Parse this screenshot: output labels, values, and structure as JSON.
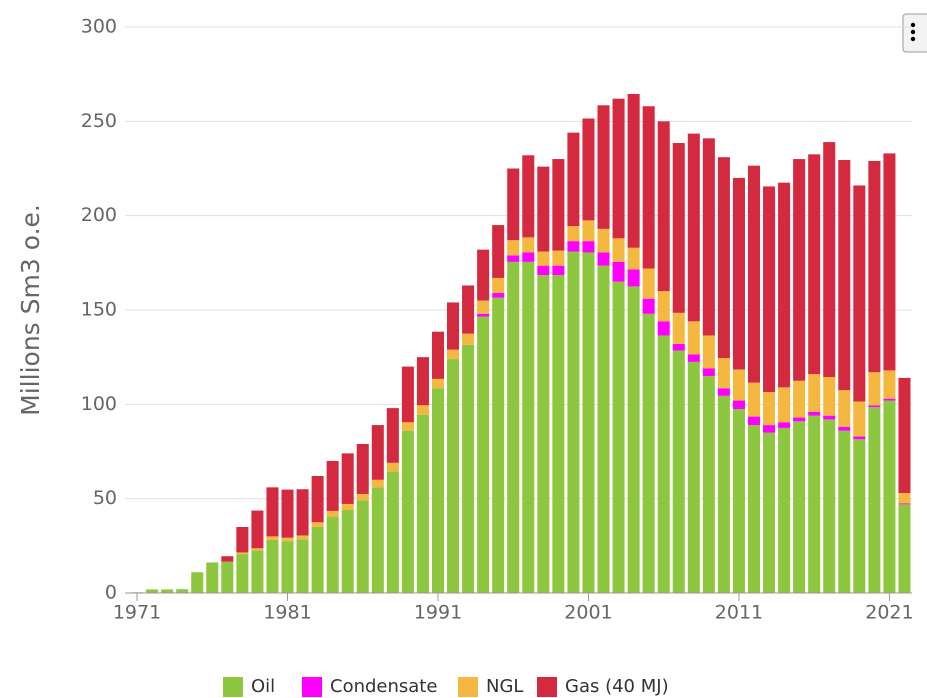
{
  "chart_data": {
    "type": "stacked_bar",
    "y_label": "Millions Sm3 o.e.",
    "x": [
      1971,
      1972,
      1973,
      1974,
      1975,
      1976,
      1977,
      1978,
      1979,
      1980,
      1981,
      1982,
      1983,
      1984,
      1985,
      1986,
      1987,
      1988,
      1989,
      1990,
      1991,
      1992,
      1993,
      1994,
      1995,
      1996,
      1997,
      1998,
      1999,
      2000,
      2001,
      2002,
      2003,
      2004,
      2005,
      2006,
      2007,
      2008,
      2009,
      2010,
      2011,
      2012,
      2013,
      2014,
      2015,
      2016,
      2017,
      2018,
      2019,
      2020,
      2021,
      2022
    ],
    "series": [
      {
        "name": "Oil",
        "color": "#8dc63f",
        "values": [
          0.4,
          1.9,
          1.9,
          2.0,
          11.0,
          16.2,
          16.6,
          20.6,
          22.5,
          28.2,
          27.5,
          28.5,
          35.0,
          40.5,
          44.0,
          49.0,
          56.0,
          64.5,
          86.0,
          94.5,
          108.5,
          124,
          131.5,
          146.5,
          156.5,
          175.5,
          175.5,
          168.5,
          168.5,
          181,
          180.5,
          173.5,
          165,
          162.5,
          148,
          136.5,
          128.5,
          122.5,
          115,
          104.5,
          97.5,
          89,
          85,
          87.5,
          91,
          94,
          92,
          86,
          81.5,
          98.5,
          102,
          47
        ]
      },
      {
        "name": "Condensate",
        "color": "#ff00ff",
        "values": [
          0,
          0,
          0,
          0,
          0,
          0,
          0,
          0,
          0,
          0,
          0,
          0,
          0,
          0,
          0,
          0,
          0,
          0,
          0,
          0,
          0,
          0,
          0,
          1.5,
          2.5,
          3.5,
          5,
          5,
          5,
          5.5,
          6,
          7,
          10.5,
          9,
          8,
          7.5,
          3.5,
          4,
          4,
          4,
          4.5,
          4.5,
          4,
          3,
          2,
          2,
          2,
          2,
          1.5,
          1,
          1,
          0.5
        ]
      },
      {
        "name": "NGL",
        "color": "#f4b840",
        "values": [
          0,
          0,
          0,
          0,
          0,
          0,
          0,
          0.9,
          1.2,
          1.8,
          1.8,
          2.0,
          2.5,
          3.0,
          3.2,
          3.5,
          4.0,
          4.5,
          4.5,
          5.0,
          5.0,
          5,
          6,
          7,
          8,
          8,
          8,
          7.5,
          8,
          8,
          11,
          12.5,
          12.5,
          11.5,
          16,
          16,
          16.5,
          17.5,
          17.5,
          16,
          16.5,
          18,
          17.5,
          18.5,
          19.5,
          20,
          20.5,
          19.5,
          18.5,
          17.5,
          15,
          5.5
        ]
      },
      {
        "name": "Gas (40 MJ)",
        "color": "#d32a3f",
        "values": [
          0,
          0,
          0,
          0,
          0,
          0,
          2.9,
          13.5,
          20,
          26,
          25.5,
          24.5,
          24.5,
          26.5,
          26.8,
          26.5,
          29,
          29,
          29.5,
          25.5,
          25,
          25,
          25.5,
          27,
          28,
          38,
          43.5,
          45,
          48.5,
          49.5,
          54,
          65.5,
          74,
          81.5,
          86,
          90,
          90,
          99.5,
          104.5,
          106.5,
          101.5,
          115,
          109,
          108.5,
          117.5,
          116.5,
          124.5,
          122,
          114.5,
          112,
          115,
          61
        ]
      }
    ],
    "xlim": [
      1970.2,
      2022.5
    ],
    "xticks": [
      1971,
      1981,
      1991,
      2001,
      2011,
      2021
    ],
    "ylim": [
      0,
      300
    ],
    "yticks": [
      0,
      50,
      100,
      150,
      200,
      250,
      300
    ],
    "grid": true
  }
}
